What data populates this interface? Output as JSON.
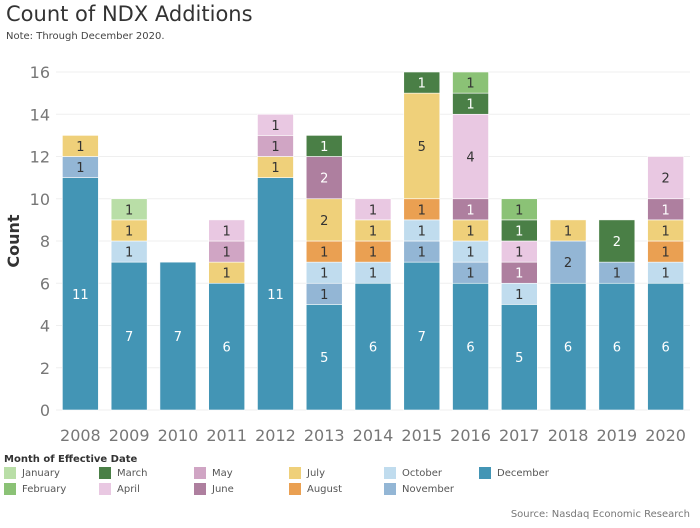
{
  "title": "Count of NDX Additions",
  "subtitle": "Note: Through December 2020.",
  "source": "Source: Nasdaq Economic Research",
  "legend_title": "Month of Effective Date",
  "chart_data": {
    "type": "bar",
    "stacked": true,
    "title": "Count of NDX Additions",
    "xlabel": "",
    "ylabel": "Count",
    "ylim": [
      0,
      16
    ],
    "yticks": [
      0,
      2,
      4,
      6,
      8,
      10,
      12,
      14,
      16
    ],
    "grid": true,
    "legend_position": "bottom",
    "categories": [
      "2008",
      "2009",
      "2010",
      "2011",
      "2012",
      "2013",
      "2014",
      "2015",
      "2016",
      "2017",
      "2018",
      "2019",
      "2020"
    ],
    "series": [
      {
        "name": "December",
        "color": "#4395b5",
        "label_color": "#ffffff",
        "values": [
          11,
          7,
          7,
          6,
          11,
          5,
          6,
          7,
          6,
          5,
          6,
          6,
          6
        ]
      },
      {
        "name": "November",
        "color": "#93b6d5",
        "label_color": "#333333",
        "values": [
          1,
          0,
          0,
          0,
          0,
          1,
          0,
          1,
          1,
          0,
          2,
          1,
          0
        ]
      },
      {
        "name": "October",
        "color": "#c0dcee",
        "label_color": "#333333",
        "values": [
          0,
          1,
          0,
          0,
          0,
          1,
          1,
          1,
          1,
          1,
          0,
          0,
          1
        ]
      },
      {
        "name": "August",
        "color": "#eaa052",
        "label_color": "#333333",
        "values": [
          0,
          0,
          0,
          0,
          0,
          1,
          1,
          1,
          0,
          0,
          0,
          0,
          1
        ]
      },
      {
        "name": "July",
        "color": "#efd07a",
        "label_color": "#333333",
        "values": [
          1,
          1,
          0,
          1,
          1,
          2,
          1,
          5,
          1,
          0,
          1,
          0,
          1
        ]
      },
      {
        "name": "June",
        "color": "#ae7f9f",
        "label_color": "#ffffff",
        "values": [
          0,
          0,
          0,
          0,
          0,
          2,
          0,
          0,
          1,
          1,
          0,
          0,
          1
        ]
      },
      {
        "name": "May",
        "color": "#d0a5c4",
        "label_color": "#333333",
        "values": [
          0,
          0,
          0,
          1,
          1,
          0,
          0,
          0,
          0,
          0,
          0,
          0,
          0
        ]
      },
      {
        "name": "April",
        "color": "#e9c8e2",
        "label_color": "#333333",
        "values": [
          0,
          0,
          0,
          1,
          1,
          0,
          1,
          0,
          4,
          1,
          0,
          0,
          2
        ]
      },
      {
        "name": "March",
        "color": "#4a7f46",
        "label_color": "#ffffff",
        "values": [
          0,
          0,
          0,
          0,
          0,
          1,
          0,
          1,
          1,
          1,
          0,
          2,
          0
        ]
      },
      {
        "name": "February",
        "color": "#8bc276",
        "label_color": "#333333",
        "values": [
          0,
          0,
          0,
          0,
          0,
          0,
          0,
          0,
          1,
          1,
          0,
          0,
          0
        ]
      },
      {
        "name": "January",
        "color": "#b9dea7",
        "label_color": "#333333",
        "values": [
          0,
          1,
          0,
          0,
          0,
          0,
          0,
          0,
          0,
          0,
          0,
          0,
          0
        ]
      }
    ],
    "legend_order": [
      "January",
      "February",
      "March",
      "April",
      "May",
      "June",
      "July",
      "August",
      "October",
      "November",
      "December"
    ]
  }
}
